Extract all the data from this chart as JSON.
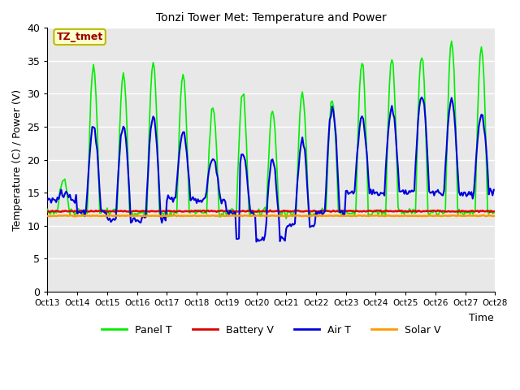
{
  "title": "Tonzi Tower Met: Temperature and Power",
  "xlabel": "Time",
  "ylabel": "Temperature (C) / Power (V)",
  "ylim": [
    0,
    40
  ],
  "xlim": [
    0,
    360
  ],
  "bg_color": "#e8e8e8",
  "annotation_text": "TZ_tmet",
  "annotation_color": "#990000",
  "annotation_bg": "#ffffcc",
  "annotation_border": "#bbbb00",
  "xtick_positions": [
    0,
    24,
    48,
    72,
    96,
    120,
    144,
    168,
    192,
    216,
    240,
    264,
    288,
    312,
    336,
    360
  ],
  "xtick_labels": [
    "Oct 13",
    "Oct 14",
    "Oct 15",
    "Oct 16",
    "Oct 17",
    "Oct 18",
    "Oct 19",
    "Oct 20",
    "Oct 21",
    "Oct 22",
    "Oct 23",
    "Oct 24",
    "Oct 25",
    "Oct 26",
    "Oct 27",
    "Oct 28"
  ],
  "panel_t_color": "#00ee00",
  "battery_v_color": "#dd0000",
  "air_t_color": "#0000dd",
  "solar_v_color": "#ff9900",
  "legend_labels": [
    "Panel T",
    "Battery V",
    "Air T",
    "Solar V"
  ],
  "battery_v_value": 12.2,
  "solar_v_value": 11.5
}
